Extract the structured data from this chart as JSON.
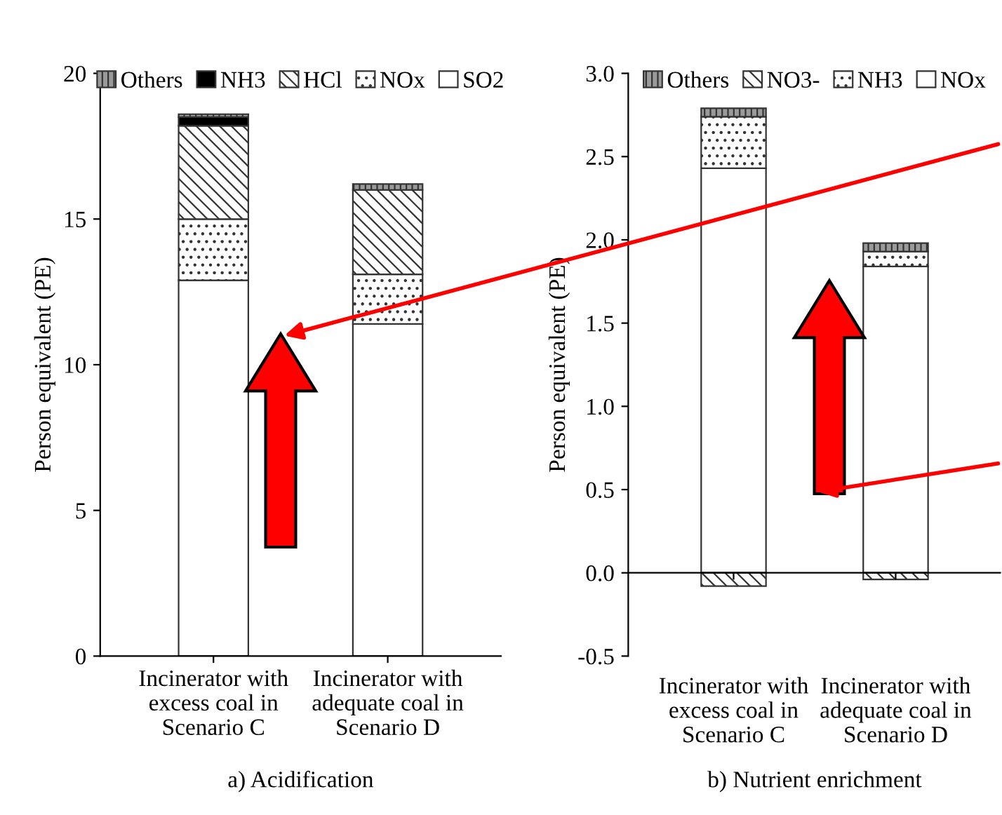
{
  "chart_data": [
    {
      "type": "bar",
      "stacked": true,
      "title": "a) Acidification",
      "ylabel": "Person equivalent (PE)",
      "categories": [
        "Incinerator with\nexcess coal in\nScenario C",
        "Incinerator with\nadequate coal in\nScenario D"
      ],
      "series": [
        {
          "name": "SO2",
          "color": "#ffffff",
          "values": [
            12.9,
            11.4
          ]
        },
        {
          "name": "NOx",
          "color": "#ffffff",
          "values": [
            2.1,
            1.7
          ]
        },
        {
          "name": "HCl",
          "color": "#ffffff",
          "values": [
            3.2,
            2.9
          ]
        },
        {
          "name": "NH3",
          "color": "#000000",
          "values": [
            0.3,
            null
          ]
        },
        {
          "name": "Others",
          "color": "#9a9a9a",
          "values": [
            0.1,
            0.2
          ]
        }
      ],
      "ylim": [
        0,
        20
      ],
      "yticks": [
        0,
        5,
        10,
        15,
        20
      ],
      "legend": "top",
      "grid": false
    },
    {
      "type": "bar",
      "stacked": true,
      "title": "b) Nutrient enrichment",
      "ylabel": "Person equivalent (PE)",
      "categories": [
        "Incinerator with\nexcess coal in\nScenario C",
        "Incinerator with\nadequate coal in\nScenario D"
      ],
      "series": [
        {
          "name": "NOx",
          "color": "#ffffff",
          "values": [
            2.43,
            1.84
          ]
        },
        {
          "name": "NH3",
          "color": "#ffffff",
          "values": [
            0.31,
            0.09
          ]
        },
        {
          "name": "NO3-",
          "color": "#ffffff",
          "values": [
            -0.08,
            -0.04
          ]
        },
        {
          "name": "Others",
          "color": "#9a9a9a",
          "values": [
            0.05,
            0.05
          ]
        }
      ],
      "ref_lines": [
        {
          "axis": "y",
          "value": 0,
          "color": "#000000"
        }
      ],
      "ylim": [
        -0.5,
        3.0
      ],
      "yticks": [
        {
          "value": -0.5,
          "label": "-0.5"
        },
        {
          "value": 0,
          "label": "0.0"
        },
        {
          "value": 0.5,
          "label": "0.5"
        },
        {
          "value": 1.0,
          "label": "1.0"
        },
        {
          "value": 1.5,
          "label": "1.5"
        },
        {
          "value": 2.0,
          "label": "2.0"
        },
        {
          "value": 2.5,
          "label": "2.5"
        },
        {
          "value": 3.0,
          "label": "3.0"
        }
      ],
      "legend": "top",
      "grid": false
    }
  ]
}
